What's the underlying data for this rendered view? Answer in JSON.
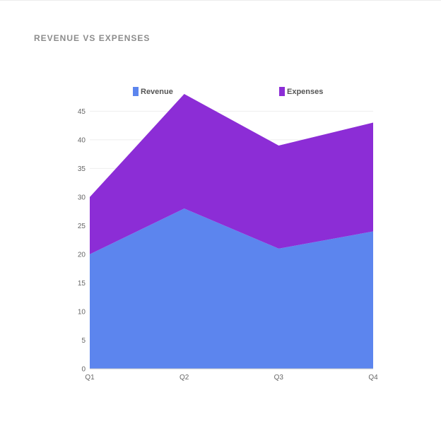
{
  "title": "REVENUE VS EXPENSES",
  "colors": {
    "revenue": "#5c85ee",
    "expenses": "#8c2dd6",
    "grid": "#eeeeee",
    "axis": "#cccccc"
  },
  "legend": [
    {
      "label": "Revenue",
      "color": "#5c85ee"
    },
    {
      "label": "Expenses",
      "color": "#8c2dd6"
    }
  ],
  "chart_data": {
    "type": "area",
    "stacked": true,
    "categories": [
      "Q1",
      "Q2",
      "Q3",
      "Q4"
    ],
    "series": [
      {
        "name": "Revenue",
        "values": [
          20,
          28,
          21,
          24
        ]
      },
      {
        "name": "Expenses",
        "values": [
          10,
          20,
          18,
          19
        ]
      }
    ],
    "yticks": [
      0,
      5,
      10,
      15,
      20,
      25,
      30,
      35,
      40,
      45
    ],
    "ylim": [
      0,
      48
    ],
    "legend_position": "top"
  }
}
